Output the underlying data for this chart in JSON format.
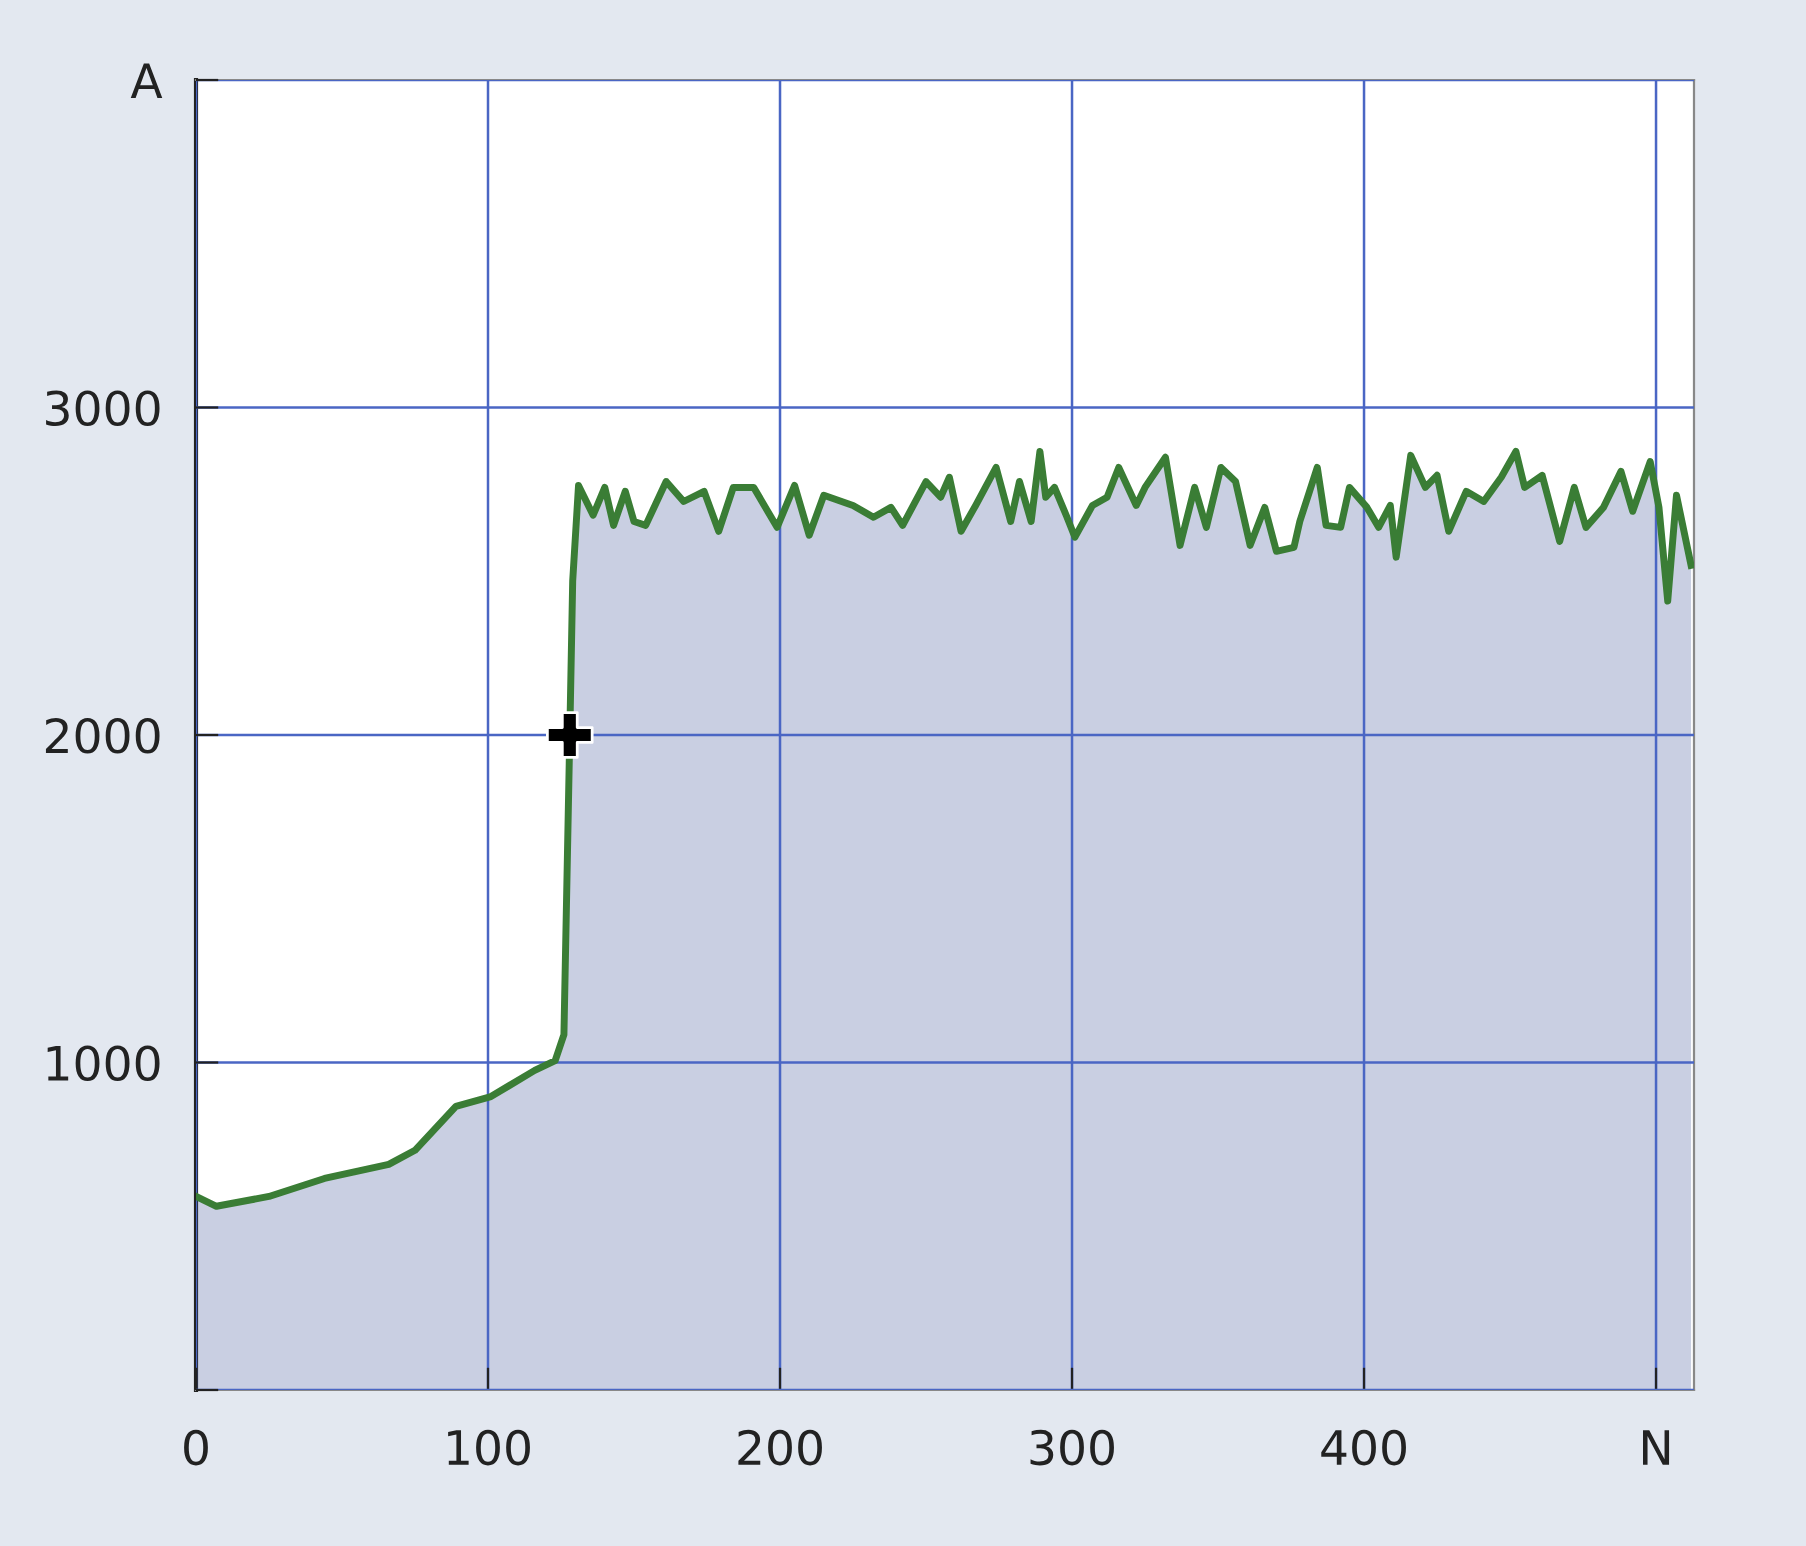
{
  "chart_data": {
    "type": "area",
    "xlim": [
      0,
      513
    ],
    "ylim": [
      0,
      4000
    ],
    "xticks": [
      0,
      100,
      200,
      300,
      400,
      {
        "value": 500,
        "label": "N"
      }
    ],
    "yticks": [
      {
        "value": 0,
        "label": null
      },
      1000,
      2000,
      3000,
      {
        "value": 4000,
        "label": "A"
      }
    ],
    "grid": true,
    "series": [
      {
        "color": "#3a7d35",
        "x": [
          0,
          7,
          25,
          44,
          66,
          75,
          89,
          101,
          116,
          123,
          126,
          128,
          129,
          131,
          136,
          140,
          143,
          147,
          150,
          154,
          161,
          167,
          174,
          179,
          184,
          191,
          199,
          205,
          210,
          215,
          225,
          232,
          238,
          242,
          250,
          255,
          258,
          262,
          267,
          274,
          279,
          282,
          286,
          289,
          291,
          294,
          298,
          301,
          307,
          312,
          316,
          322,
          325,
          332,
          337,
          342,
          346,
          351,
          356,
          361,
          366,
          370,
          376,
          378,
          384,
          387,
          392,
          395,
          401,
          405,
          409,
          411,
          416,
          421,
          425,
          429,
          435,
          441,
          447,
          452,
          455,
          461,
          467,
          472,
          476,
          482,
          488,
          492,
          498,
          501,
          504,
          507,
          512
        ],
        "values": [
          591,
          561,
          591,
          646,
          689,
          732,
          866,
          896,
          976,
          1006,
          1085,
          2000,
          2470,
          2762,
          2671,
          2756,
          2640,
          2744,
          2652,
          2640,
          2774,
          2713,
          2744,
          2622,
          2756,
          2756,
          2634,
          2762,
          2610,
          2732,
          2701,
          2665,
          2695,
          2640,
          2774,
          2726,
          2787,
          2622,
          2701,
          2817,
          2652,
          2774,
          2652,
          2866,
          2726,
          2756,
          2671,
          2604,
          2701,
          2726,
          2817,
          2701,
          2756,
          2848,
          2579,
          2756,
          2634,
          2817,
          2774,
          2579,
          2695,
          2561,
          2573,
          2652,
          2817,
          2640,
          2634,
          2756,
          2695,
          2634,
          2701,
          2543,
          2854,
          2756,
          2793,
          2622,
          2744,
          2713,
          2787,
          2866,
          2756,
          2793,
          2591,
          2756,
          2634,
          2695,
          2805,
          2683,
          2835,
          2695,
          2409,
          2732,
          2518
        ]
      },
      {
        "type": "scatter",
        "marker": "cross",
        "color": "#000000",
        "x": [
          128
        ],
        "values": [
          2000
        ]
      }
    ]
  }
}
